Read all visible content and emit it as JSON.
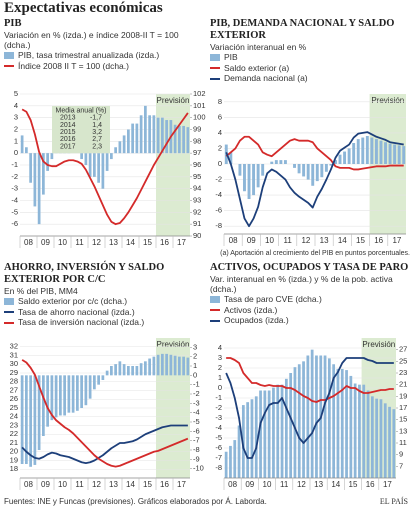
{
  "header": {
    "title": "Expectativas económicas"
  },
  "footer": {
    "source": "Fuentes: INE y Funcas (previsiones).  Gráficos elaborados por Á. Laborda.",
    "brand": "EL PAÍS"
  },
  "chart_data": [
    {
      "type": "combo",
      "title": "PIB",
      "subtitle": "Variación en % (izda.) e índice 2008-II T = 100 (dcha.)",
      "categories": [
        "08",
        null,
        null,
        null,
        "09",
        null,
        null,
        null,
        "10",
        null,
        null,
        null,
        "11",
        null,
        null,
        null,
        "12",
        null,
        null,
        null,
        "13",
        null,
        null,
        null,
        "14",
        null,
        null,
        null,
        "15",
        null,
        null,
        null,
        "16",
        null,
        null,
        null,
        "17",
        null,
        null,
        null
      ],
      "series": [
        {
          "name": "PIB, tasa trimestral anualizada (izda.)",
          "type": "bar",
          "color": "#8db6d8",
          "values": [
            1.5,
            0.5,
            -2.5,
            -4.5,
            -6,
            -3.5,
            -1.5,
            -0.5,
            0.5,
            1.5,
            0.5,
            0.5,
            0,
            0,
            -0.5,
            -1,
            -2,
            -2,
            -2.5,
            -3,
            -1.5,
            -0.5,
            0.5,
            1,
            1.5,
            2,
            2.5,
            2.5,
            3.2,
            4,
            3.2,
            3.2,
            3,
            3,
            2.8,
            2.8,
            2.4,
            2.3,
            2.3,
            2.2
          ]
        },
        {
          "name": "Índice 2008 II T = 100 (dcha.)",
          "type": "line",
          "axis": "y2",
          "color": "#d42a2a",
          "values": [
            100.7,
            100.5,
            99.8,
            98.6,
            97.1,
            96.3,
            96,
            95.9,
            95.9,
            96.1,
            96.3,
            96.4,
            96.4,
            96.3,
            96.1,
            95.6,
            94.9,
            94.2,
            93.4,
            92.6,
            91.8,
            91.2,
            91,
            91.1,
            91.5,
            92,
            92.6,
            93.2,
            93.9,
            94.6,
            95.3,
            96,
            96.6,
            97.2,
            97.8,
            98.4,
            98.9,
            99.4,
            99.9,
            100.4
          ]
        }
      ],
      "ylim": [
        -7,
        5
      ],
      "yticks": [
        -6,
        -5,
        -4,
        -3,
        -2,
        -1,
        0,
        1,
        2,
        3,
        4,
        5
      ],
      "y2lim": [
        90,
        102
      ],
      "y2ticks": [
        90,
        91,
        92,
        93,
        94,
        95,
        96,
        97,
        98,
        99,
        100,
        101,
        102
      ],
      "grid": true,
      "forecast": {
        "label": "Previsión",
        "from": "16",
        "color": "#dcebd1"
      },
      "table": {
        "title": "Media anual (%)",
        "rows": [
          [
            "2013",
            "-1,7"
          ],
          [
            "2014",
            "1,4"
          ],
          [
            "2015",
            "3,2"
          ],
          [
            "2016",
            "2,7"
          ],
          [
            "2017",
            "2,3"
          ]
        ]
      }
    },
    {
      "type": "combo",
      "title": "PIB, DEMANDA NACIONAL Y SALDO EXTERIOR",
      "subtitle": "Variación interanual en %",
      "categories": [
        "08",
        null,
        null,
        null,
        "09",
        null,
        null,
        null,
        "10",
        null,
        null,
        null,
        "11",
        null,
        null,
        null,
        "12",
        null,
        null,
        null,
        "13",
        null,
        null,
        null,
        "14",
        null,
        null,
        null,
        "15",
        null,
        null,
        null,
        "16",
        null,
        null,
        null,
        "17",
        null,
        null,
        null
      ],
      "series": [
        {
          "name": "PIB",
          "type": "bar",
          "color": "#8db6d8",
          "values": [
            2.5,
            1.5,
            0,
            -1.5,
            -3.5,
            -4.5,
            -4,
            -3,
            -1.5,
            0,
            0.3,
            0.5,
            0.5,
            0.5,
            0,
            -0.5,
            -1.2,
            -1.6,
            -2,
            -2.8,
            -2.2,
            -1.7,
            -1,
            -0.2,
            0.5,
            1.2,
            1.6,
            2,
            2.7,
            3.2,
            3.4,
            3.6,
            3.4,
            3.2,
            3,
            2.8,
            2.6,
            2.5,
            2.4,
            2.3
          ]
        },
        {
          "name": "Saldo exterior (a)",
          "type": "line",
          "color": "#d42a2a",
          "values": [
            1,
            1.5,
            2,
            3,
            3.5,
            3.5,
            3,
            2.5,
            1.5,
            1.2,
            1,
            1.5,
            2,
            2.5,
            3,
            3.2,
            3,
            3,
            3,
            2.8,
            2,
            1.5,
            1,
            0.5,
            -0.3,
            -0.5,
            -0.5,
            -0.5,
            -0.7,
            -0.7,
            -0.6,
            -0.5,
            -0.4,
            -0.3,
            -0.3,
            -0.3,
            -0.2,
            -0.2,
            -0.2,
            -0.2
          ]
        },
        {
          "name": "Demanda nacional (a)",
          "type": "line",
          "color": "#1d3f7a",
          "values": [
            1.5,
            0,
            -2,
            -4.5,
            -7,
            -8,
            -7,
            -5.5,
            -3,
            -1.2,
            -0.7,
            -1,
            -1.5,
            -2,
            -3,
            -3.7,
            -4.2,
            -4.6,
            -5,
            -5.6,
            -4.2,
            -3.2,
            -2,
            -0.7,
            0.8,
            1.7,
            2.1,
            2.5,
            3.4,
            3.9,
            4,
            4.1,
            3.8,
            3.5,
            3.3,
            3.1,
            2.8,
            2.7,
            2.6,
            2.5
          ]
        }
      ],
      "ylim": [
        -9,
        9
      ],
      "yticks": [
        -8,
        -6,
        -4,
        -2,
        0,
        2,
        4,
        6,
        8
      ],
      "grid": true,
      "forecast": {
        "label": "Previsión",
        "from": "16",
        "color": "#dcebd1"
      },
      "note": "(a) Aportación al crecimiento del PIB en puntos porcentuales."
    },
    {
      "type": "combo",
      "title": "AHORRO, INVERSIÓN Y SALDO EXTERIOR POR C/C",
      "subtitle": "En % del PIB, MM4",
      "categories": [
        "08",
        null,
        null,
        null,
        "09",
        null,
        null,
        null,
        "10",
        null,
        null,
        null,
        "11",
        null,
        null,
        null,
        "12",
        null,
        null,
        null,
        "13",
        null,
        null,
        null,
        "14",
        null,
        null,
        null,
        "15",
        null,
        null,
        null,
        "16",
        null,
        null,
        null,
        "17",
        null,
        null,
        null
      ],
      "series": [
        {
          "name": "Saldo exterior por c/c (dcha.)",
          "type": "bar",
          "axis": "y2",
          "color": "#8db6d8",
          "values": [
            -9.5,
            -9.5,
            -9.8,
            -9.6,
            -8,
            -6.5,
            -5.5,
            -4.8,
            -4.5,
            -4.3,
            -4.3,
            -4,
            -4,
            -3.8,
            -3.5,
            -3.2,
            -2.5,
            -1.5,
            -1,
            -0.5,
            0.5,
            1,
            1.2,
            1.5,
            1.2,
            1,
            1,
            1,
            1.3,
            1.5,
            1.8,
            2,
            2.2,
            2.3,
            2.3,
            2.2,
            2.1,
            2,
            2,
            1.9
          ]
        },
        {
          "name": "Tasa de ahorro nacional (izda.)",
          "type": "line",
          "color": "#1d3f7a",
          "values": [
            20.5,
            20,
            19.6,
            19.3,
            19.2,
            19.4,
            19.7,
            19.9,
            19.8,
            19.6,
            19.5,
            19.4,
            19.2,
            19,
            18.8,
            18.7,
            18.8,
            19,
            19.3,
            19.6,
            20,
            20.4,
            20.7,
            21,
            21,
            21.1,
            21.2,
            21.4,
            21.7,
            22,
            22.2,
            22.4,
            22.6,
            22.8,
            22.9,
            23,
            23,
            23,
            23,
            23
          ]
        },
        {
          "name": "Tasa de inversión nacional (izda.)",
          "type": "line",
          "color": "#d42a2a",
          "values": [
            30.5,
            30.2,
            29.6,
            28.8,
            27.5,
            26.2,
            25,
            24.2,
            23.6,
            23.2,
            22.8,
            22.5,
            22.1,
            21.6,
            21.1,
            20.6,
            20.1,
            19.6,
            19.2,
            18.9,
            18.6,
            18.4,
            18.3,
            18.4,
            18.6,
            18.8,
            19,
            19.2,
            19.4,
            19.6,
            19.8,
            20,
            20.1,
            20.3,
            20.5,
            20.7,
            20.9,
            21.1,
            21.3,
            21.5
          ]
        }
      ],
      "ylim": [
        17,
        33
      ],
      "yticks": [
        18,
        19,
        20,
        21,
        22,
        23,
        24,
        25,
        26,
        27,
        28,
        29,
        30,
        31,
        32
      ],
      "y2lim": [
        -11,
        4
      ],
      "y2ticks": [
        -10,
        -9,
        -8,
        -7,
        -6,
        -5,
        -4,
        -3,
        -2,
        -1,
        0,
        1,
        2,
        3
      ],
      "grid": true,
      "forecast": {
        "label": "Previsión",
        "from": "16",
        "color": "#dcebd1"
      }
    },
    {
      "type": "combo",
      "title": "ACTIVOS, OCUPADOS Y TASA DE PARO",
      "subtitle": "Var. interanual en % (izda.) y % de la pob. activa (dcha.)",
      "categories": [
        "08",
        null,
        null,
        null,
        "09",
        null,
        null,
        null,
        "10",
        null,
        null,
        null,
        "11",
        null,
        null,
        null,
        "12",
        null,
        null,
        null,
        "13",
        null,
        null,
        null,
        "14",
        null,
        null,
        null,
        "15",
        null,
        null,
        null,
        "16",
        null,
        null,
        null,
        "17",
        null,
        null,
        null
      ],
      "series": [
        {
          "name": "Tasa de paro CVE (dcha.)",
          "type": "bar",
          "axis": "y2",
          "color": "#8db6d8",
          "values": [
            9.5,
            10.5,
            11.5,
            14,
            17.5,
            18,
            18.5,
            19,
            20,
            20,
            20,
            20.5,
            21,
            21,
            22,
            23,
            24,
            24.5,
            25,
            26,
            27,
            26,
            26,
            26,
            25.5,
            24.5,
            23.7,
            23.7,
            23.5,
            22.5,
            21.2,
            21,
            21,
            20,
            19,
            18.6,
            18.5,
            17.8,
            17.2,
            16.8
          ]
        },
        {
          "name": "Activos (izda.)",
          "type": "line",
          "color": "#d42a2a",
          "values": [
            3,
            3,
            2.8,
            2.5,
            1.5,
            1,
            0.5,
            0.5,
            0.3,
            0.2,
            0.3,
            0.2,
            0.2,
            0.2,
            0,
            0,
            -0.2,
            -0.5,
            -0.8,
            -1,
            -1.3,
            -1.4,
            -1.2,
            -1.2,
            -1,
            -0.8,
            -0.5,
            -0.2,
            0.2,
            0,
            0,
            -0.3,
            -0.5,
            -0.5,
            -0.4,
            -0.3,
            -0.2,
            -0.2,
            -0.1,
            -0.1
          ]
        },
        {
          "name": "Ocupados (izda.)",
          "type": "line",
          "color": "#1d3f7a",
          "values": [
            1.5,
            0.5,
            -1,
            -3,
            -6,
            -7,
            -7,
            -6,
            -3.5,
            -2.5,
            -1.7,
            -1.5,
            -1.5,
            -1,
            -2,
            -3,
            -4,
            -5,
            -5.5,
            -5,
            -4.5,
            -3.5,
            -3,
            -1.5,
            -0.5,
            1,
            1.6,
            2.5,
            3,
            3,
            3,
            3,
            3,
            2.8,
            2.7,
            2.5,
            2.5,
            2.5,
            2.5,
            2.5
          ]
        }
      ],
      "ylim": [
        -9,
        5
      ],
      "yticks": [
        -8,
        -7,
        -6,
        -5,
        -4,
        -3,
        -2,
        -1,
        0,
        1,
        2,
        3,
        4
      ],
      "y2lim": [
        5,
        29
      ],
      "y2ticks": [
        7,
        9,
        11,
        13,
        15,
        17,
        19,
        21,
        23,
        25,
        27
      ],
      "grid": true,
      "forecast": {
        "label": "Previsión",
        "from": "16",
        "color": "#dcebd1"
      }
    }
  ]
}
